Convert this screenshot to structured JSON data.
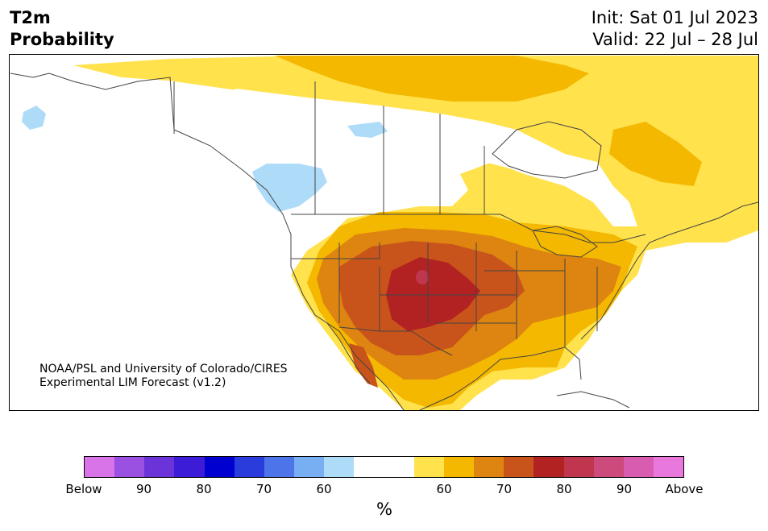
{
  "header": {
    "title_line1": "T2m",
    "title_line2": "Probability",
    "init": "Init: Sat 01 Jul 2023",
    "valid": "Valid: 22 Jul – 28 Jul"
  },
  "credit": {
    "line1": "NOAA/PSL and University of Colorado/CIRES",
    "line2": "Experimental LIM Forecast (v1.2)"
  },
  "colorbar": {
    "colors": [
      "#d874e8",
      "#9a50e0",
      "#6a34d8",
      "#3c1cd6",
      "#0000d0",
      "#2a3cdc",
      "#4e74ea",
      "#78aef2",
      "#aedcf8",
      "#ffffff",
      "#ffffff",
      "#ffe24c",
      "#f4b800",
      "#de8410",
      "#c8541c",
      "#b22222",
      "#c0364e",
      "#cc4a7c",
      "#d85cb0",
      "#e878dc"
    ],
    "tick_labels": [
      "Below",
      "90",
      "80",
      "70",
      "60",
      "60",
      "70",
      "80",
      "90",
      "Above"
    ],
    "unit": "%"
  },
  "map": {
    "region": "North America",
    "palette": {
      "above_55": "#ffe24c",
      "above_60": "#f4b800",
      "above_65": "#de8410",
      "above_70": "#c8541c",
      "above_80": "#b22222",
      "above_90": "#c0364e",
      "below_55": "#aedcf8",
      "neutral": "#ffffff",
      "boundary": "#444444"
    }
  }
}
